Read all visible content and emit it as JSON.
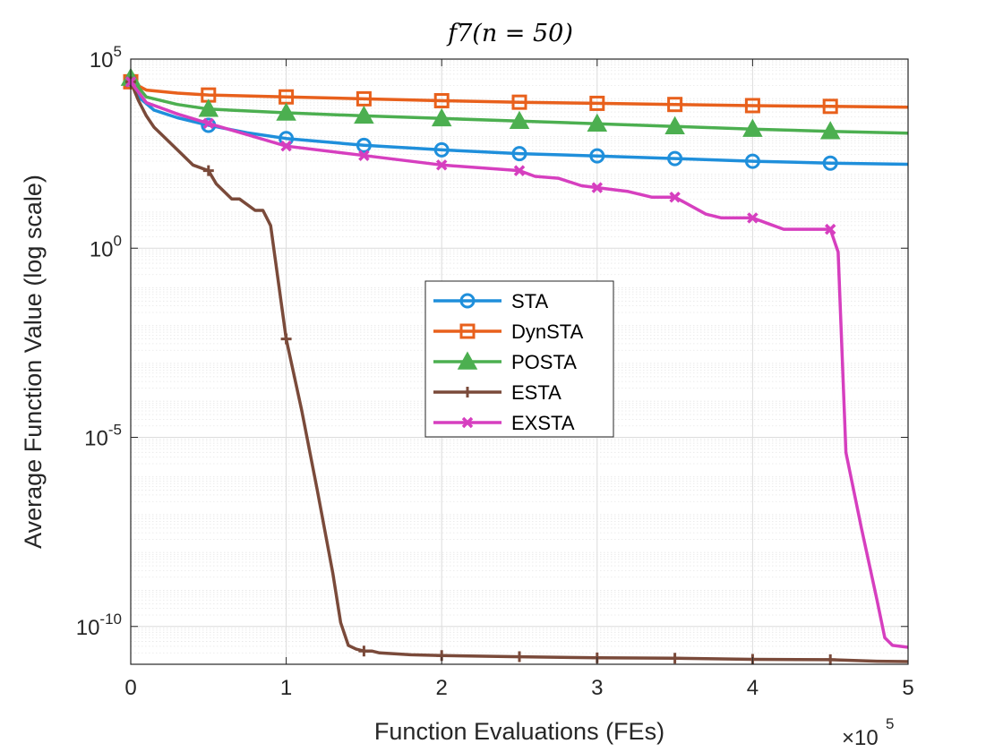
{
  "chart_data": {
    "type": "line",
    "title": "f7(n = 50)",
    "xlabel": "Function Evaluations (FEs)",
    "ylabel": "Average Function Value (log scale)",
    "x_multiplier_label": "×10",
    "x_multiplier_exponent": "5",
    "xlim": [
      0,
      5
    ],
    "ylim_log10": [
      -11,
      5
    ],
    "yscale": "log",
    "grid": true,
    "legend_location": "center",
    "x_ticks": [
      {
        "value": 0,
        "label": "0"
      },
      {
        "value": 1,
        "label": "1"
      },
      {
        "value": 2,
        "label": "2"
      },
      {
        "value": 3,
        "label": "3"
      },
      {
        "value": 4,
        "label": "4"
      },
      {
        "value": 5,
        "label": "5"
      }
    ],
    "y_ticks": [
      {
        "exp": 5,
        "base": "10",
        "power": "5"
      },
      {
        "exp": 0,
        "base": "10",
        "power": "0"
      },
      {
        "exp": -5,
        "base": "10",
        "power": "-5"
      },
      {
        "exp": -10,
        "base": "10",
        "power": "-10"
      }
    ],
    "series": [
      {
        "name": "STA",
        "color": "#1f8fdb",
        "marker": "circle",
        "points_log10": [
          [
            0,
            4.4
          ],
          [
            0.05,
            4.0
          ],
          [
            0.15,
            3.65
          ],
          [
            0.3,
            3.45
          ],
          [
            0.5,
            3.25
          ],
          [
            0.75,
            3.05
          ],
          [
            1.0,
            2.9
          ],
          [
            1.5,
            2.72
          ],
          [
            2.0,
            2.6
          ],
          [
            2.5,
            2.5
          ],
          [
            3.0,
            2.44
          ],
          [
            3.5,
            2.37
          ],
          [
            4.0,
            2.3
          ],
          [
            4.5,
            2.25
          ],
          [
            5.0,
            2.22
          ]
        ],
        "marker_x": [
          0,
          0.5,
          1.0,
          1.5,
          2.0,
          2.5,
          3.0,
          3.5,
          4.0,
          4.5
        ]
      },
      {
        "name": "DynSTA",
        "color": "#e8601c",
        "marker": "square",
        "points_log10": [
          [
            0,
            4.4
          ],
          [
            0.1,
            4.18
          ],
          [
            0.3,
            4.1
          ],
          [
            0.5,
            4.05
          ],
          [
            1.0,
            4.0
          ],
          [
            1.5,
            3.95
          ],
          [
            2.0,
            3.9
          ],
          [
            2.5,
            3.86
          ],
          [
            3.0,
            3.83
          ],
          [
            3.5,
            3.8
          ],
          [
            4.0,
            3.77
          ],
          [
            4.5,
            3.75
          ],
          [
            5.0,
            3.73
          ]
        ],
        "marker_x": [
          0,
          0.5,
          1.0,
          1.5,
          2.0,
          2.5,
          3.0,
          3.5,
          4.0,
          4.5
        ]
      },
      {
        "name": "POSTA",
        "color": "#4caf50",
        "marker": "triangle",
        "points_log10": [
          [
            0,
            4.5
          ],
          [
            0.1,
            4.0
          ],
          [
            0.3,
            3.8
          ],
          [
            0.5,
            3.68
          ],
          [
            1.0,
            3.58
          ],
          [
            1.5,
            3.5
          ],
          [
            2.0,
            3.43
          ],
          [
            2.5,
            3.36
          ],
          [
            3.0,
            3.29
          ],
          [
            3.5,
            3.22
          ],
          [
            4.0,
            3.15
          ],
          [
            4.5,
            3.09
          ],
          [
            5.0,
            3.04
          ]
        ],
        "marker_x": [
          0,
          0.5,
          1.0,
          1.5,
          2.0,
          2.5,
          3.0,
          3.5,
          4.0,
          4.5
        ]
      },
      {
        "name": "ESTA",
        "color": "#7a4a3a",
        "marker": "plus",
        "points_log10": [
          [
            0,
            4.4
          ],
          [
            0.05,
            3.9
          ],
          [
            0.1,
            3.5
          ],
          [
            0.15,
            3.2
          ],
          [
            0.2,
            3.0
          ],
          [
            0.3,
            2.6
          ],
          [
            0.4,
            2.2
          ],
          [
            0.5,
            2.05
          ],
          [
            0.55,
            1.7
          ],
          [
            0.65,
            1.3
          ],
          [
            0.7,
            1.3
          ],
          [
            0.8,
            1.0
          ],
          [
            0.85,
            1.0
          ],
          [
            0.9,
            0.6
          ],
          [
            1.0,
            -2.4
          ],
          [
            1.1,
            -4.3
          ],
          [
            1.2,
            -6.4
          ],
          [
            1.3,
            -8.6
          ],
          [
            1.35,
            -9.9
          ],
          [
            1.4,
            -10.5
          ],
          [
            1.45,
            -10.6
          ],
          [
            1.5,
            -10.65
          ],
          [
            1.55,
            -10.65
          ],
          [
            1.6,
            -10.7
          ],
          [
            1.8,
            -10.75
          ],
          [
            2.0,
            -10.77
          ],
          [
            2.5,
            -10.8
          ],
          [
            3.0,
            -10.83
          ],
          [
            3.5,
            -10.84
          ],
          [
            4.0,
            -10.87
          ],
          [
            4.5,
            -10.88
          ],
          [
            4.8,
            -10.92
          ],
          [
            5.0,
            -10.93
          ]
        ],
        "marker_x": [
          0,
          0.5,
          1.0,
          1.5,
          2.0,
          2.5,
          3.0,
          3.5,
          4.0,
          4.5
        ]
      },
      {
        "name": "EXSTA",
        "color": "#d63fbf",
        "marker": "x",
        "points_log10": [
          [
            0,
            4.4
          ],
          [
            0.1,
            3.85
          ],
          [
            0.3,
            3.55
          ],
          [
            0.5,
            3.3
          ],
          [
            0.75,
            3.0
          ],
          [
            1.0,
            2.7
          ],
          [
            1.5,
            2.45
          ],
          [
            2.0,
            2.2
          ],
          [
            2.5,
            2.05
          ],
          [
            2.6,
            1.9
          ],
          [
            2.75,
            1.85
          ],
          [
            2.9,
            1.65
          ],
          [
            3.0,
            1.6
          ],
          [
            3.2,
            1.5
          ],
          [
            3.35,
            1.35
          ],
          [
            3.5,
            1.35
          ],
          [
            3.7,
            0.9
          ],
          [
            3.8,
            0.8
          ],
          [
            4.0,
            0.8
          ],
          [
            4.1,
            0.65
          ],
          [
            4.2,
            0.5
          ],
          [
            4.5,
            0.5
          ],
          [
            4.55,
            -0.1
          ],
          [
            4.6,
            -5.4
          ],
          [
            4.7,
            -7.4
          ],
          [
            4.8,
            -9.3
          ],
          [
            4.85,
            -10.3
          ],
          [
            4.9,
            -10.5
          ],
          [
            5.0,
            -10.55
          ]
        ],
        "marker_x": [
          0,
          0.5,
          1.0,
          1.5,
          2.0,
          2.5,
          3.0,
          3.5,
          4.0,
          4.5
        ]
      }
    ]
  }
}
